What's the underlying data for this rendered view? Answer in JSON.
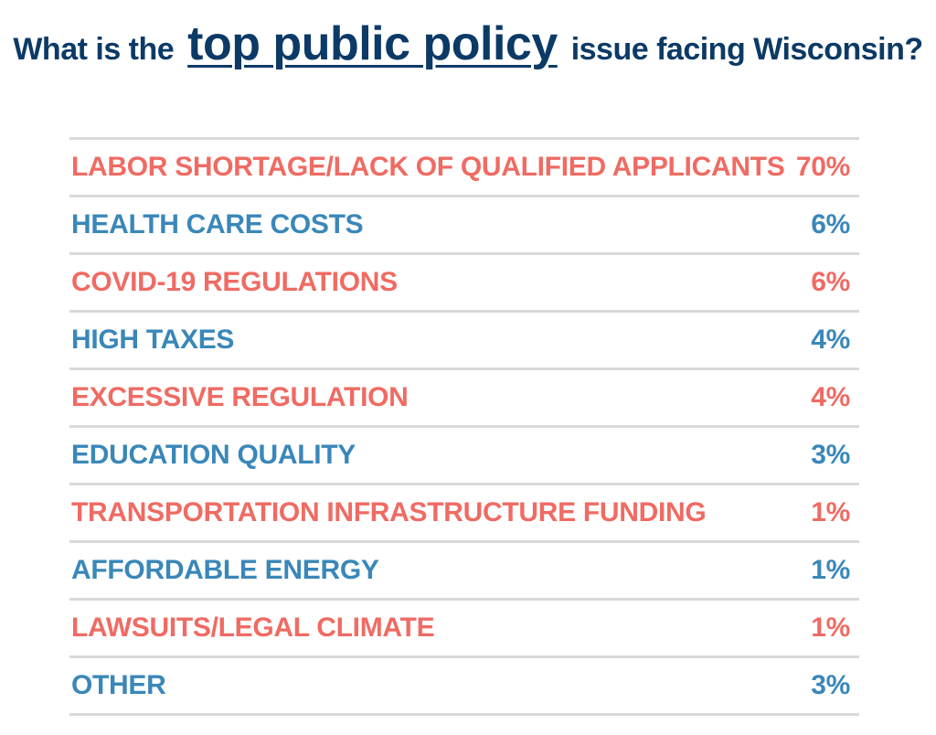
{
  "title": {
    "before": "What is the",
    "emphasis": "top public policy",
    "after": "issue facing Wisconsin?"
  },
  "colors": {
    "title": "#0c3a66",
    "coral": "#ef6b63",
    "blue": "#3a87b9",
    "rule": "#d9d9d9"
  },
  "chart_data": {
    "type": "table",
    "title": "What is the top public policy issue facing Wisconsin?",
    "categories": [
      "LABOR SHORTAGE/LACK OF QUALIFIED APPLICANTS",
      "HEALTH CARE COSTS",
      "COVID-19 REGULATIONS",
      "HIGH TAXES",
      "EXCESSIVE REGULATION",
      "EDUCATION QUALITY",
      "TRANSPORTATION INFRASTRUCTURE FUNDING",
      "AFFORDABLE ENERGY",
      "LAWSUITS/LEGAL CLIMATE",
      "OTHER"
    ],
    "values": [
      70,
      6,
      6,
      4,
      4,
      3,
      1,
      1,
      1,
      3
    ],
    "display_values": [
      "70%",
      "6%",
      "6%",
      "4%",
      "4%",
      "3%",
      "1%",
      "1%",
      "1%",
      "3%"
    ],
    "row_colors": [
      "#ef6b63",
      "#3a87b9",
      "#ef6b63",
      "#3a87b9",
      "#ef6b63",
      "#3a87b9",
      "#ef6b63",
      "#3a87b9",
      "#ef6b63",
      "#3a87b9"
    ]
  }
}
